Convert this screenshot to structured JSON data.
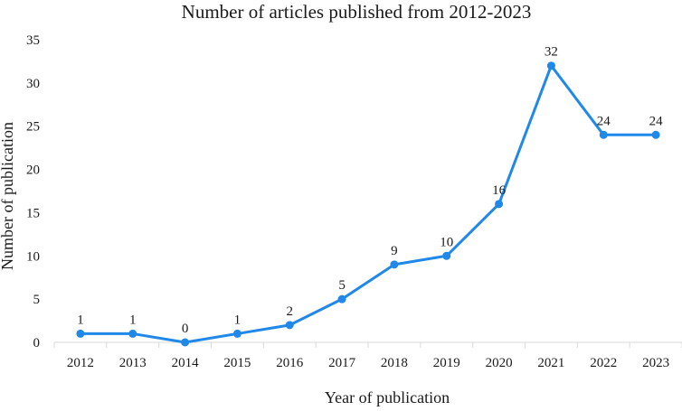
{
  "chart_data": {
    "type": "line",
    "title": "Number of articles published from 2012-2023",
    "xlabel": "Year of publication",
    "ylabel": "Number of publication",
    "categories": [
      "2012",
      "2013",
      "2014",
      "2015",
      "2016",
      "2017",
      "2018",
      "2019",
      "2020",
      "2021",
      "2022",
      "2023"
    ],
    "series": [
      {
        "values": [
          1,
          1,
          0,
          1,
          2,
          5,
          9,
          10,
          16,
          32,
          24,
          24
        ]
      }
    ],
    "yticks": [
      0,
      5,
      10,
      15,
      20,
      25,
      30,
      35
    ],
    "ylim": [
      0,
      35
    ],
    "grid": false,
    "legend": "none",
    "data_labels": true,
    "color": "#1f88e8"
  }
}
